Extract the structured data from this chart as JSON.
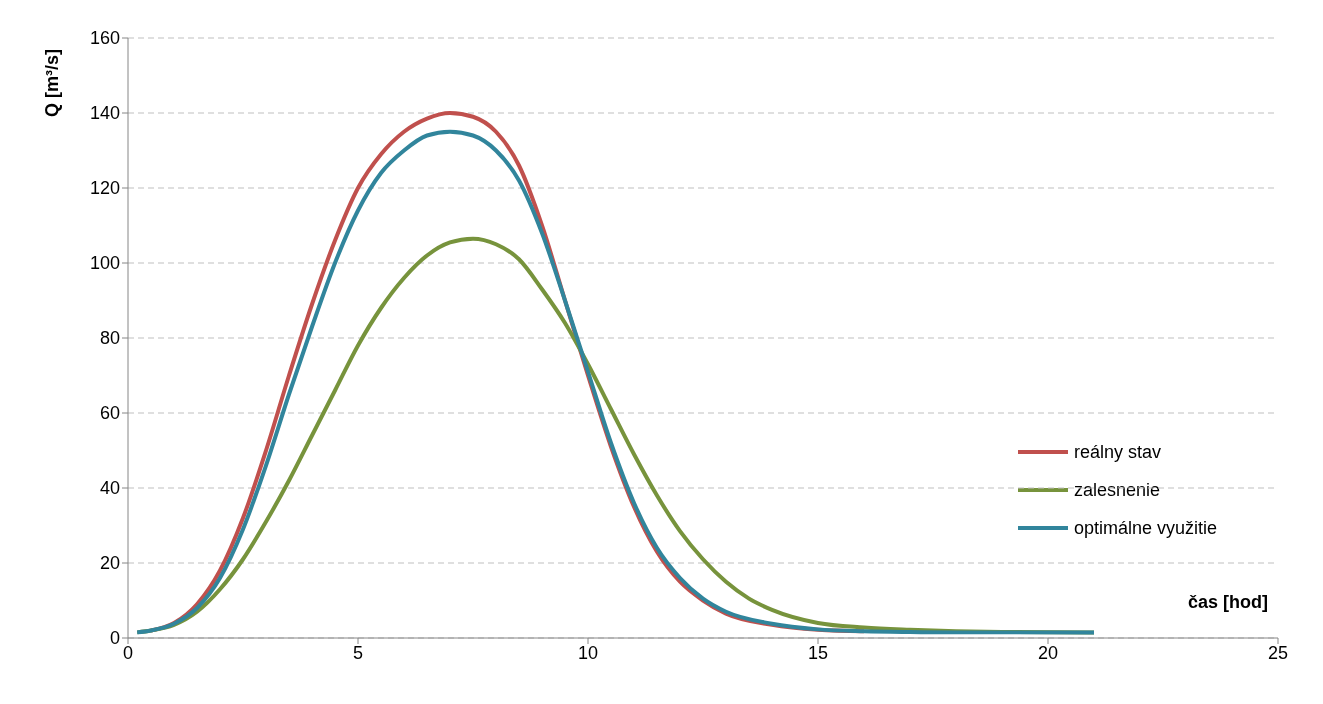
{
  "chart_data": {
    "type": "line",
    "xlabel": "čas [hod]",
    "ylabel": "Q [m³/s]",
    "xlim": [
      0,
      25
    ],
    "xticks": [
      0,
      5,
      10,
      15,
      20,
      25
    ],
    "ylim": [
      0,
      160
    ],
    "yticks": [
      0,
      20,
      40,
      60,
      80,
      100,
      120,
      140,
      160
    ],
    "grid": "y",
    "legend": "right",
    "marker": "none",
    "line_style": "solid",
    "series": [
      {
        "name": "reálny stav",
        "color": "#c0504d",
        "x": [
          0.5,
          1,
          1.5,
          2,
          2.5,
          3,
          3.5,
          4,
          4.5,
          5,
          5.5,
          6,
          6.5,
          7,
          7.5,
          8,
          8.5,
          9,
          9.5,
          10,
          10.5,
          11,
          11.5,
          12,
          12.5,
          13,
          14,
          15,
          16
        ],
        "values": [
          2,
          4,
          9,
          18,
          32,
          50,
          70,
          89,
          106,
          120,
          129,
          135,
          138.5,
          140,
          139,
          135,
          126,
          110,
          90,
          70,
          51,
          35,
          23,
          15,
          10,
          6.5,
          3.5,
          2.2,
          1.8
        ]
      },
      {
        "name": "zalesnenie",
        "color": "#77933c",
        "x": [
          0.2,
          0.5,
          1,
          1.5,
          2,
          2.5,
          3,
          3.5,
          4,
          4.5,
          5,
          5.5,
          6,
          6.5,
          7,
          7.5,
          8,
          8.5,
          9,
          9.5,
          10,
          10.5,
          11,
          11.5,
          12,
          12.5,
          13,
          13.5,
          14,
          15,
          16,
          17,
          18,
          19,
          21
        ],
        "values": [
          1.5,
          2,
          3.5,
          7,
          13,
          21,
          31,
          42,
          54,
          66,
          78,
          88,
          96,
          102,
          105.5,
          106.5,
          105,
          101,
          93,
          84,
          73,
          61,
          49,
          38,
          28.5,
          21,
          15,
          10.5,
          7.5,
          4,
          2.8,
          2.2,
          1.8,
          1.6,
          1.5
        ]
      },
      {
        "name": "optimálne využitie",
        "color": "#31859c",
        "x": [
          0.2,
          0.5,
          1,
          1.5,
          2,
          2.5,
          3,
          3.5,
          4,
          4.5,
          5,
          5.5,
          6,
          6.5,
          7,
          7.5,
          8,
          8.5,
          9,
          9.5,
          10,
          10.5,
          11,
          11.5,
          12,
          12.5,
          13,
          14,
          15,
          16,
          17,
          18,
          21
        ],
        "values": [
          1.5,
          2,
          3.8,
          8,
          16,
          29,
          46,
          65,
          83,
          100,
          114,
          124,
          130,
          134,
          135,
          134,
          130,
          122,
          108,
          90,
          71,
          52,
          36,
          24,
          16,
          10.5,
          7,
          3.8,
          2.3,
          1.8,
          1.6,
          1.5,
          1.5
        ]
      }
    ]
  }
}
